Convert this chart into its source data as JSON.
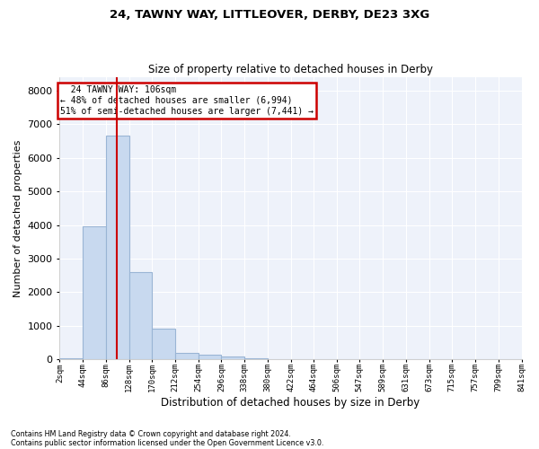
{
  "title1": "24, TAWNY WAY, LITTLEOVER, DERBY, DE23 3XG",
  "title2": "Size of property relative to detached houses in Derby",
  "xlabel": "Distribution of detached houses by size in Derby",
  "ylabel": "Number of detached properties",
  "annotation_title": "24 TAWNY WAY: 106sqm",
  "annotation_line1": "← 48% of detached houses are smaller (6,994)",
  "annotation_line2": "51% of semi-detached houses are larger (7,441) →",
  "footer1": "Contains HM Land Registry data © Crown copyright and database right 2024.",
  "footer2": "Contains public sector information licensed under the Open Government Licence v3.0.",
  "property_size": 106,
  "bin_edges": [
    2,
    44,
    86,
    128,
    170,
    212,
    254,
    296,
    338,
    380,
    422,
    464,
    506,
    547,
    589,
    631,
    673,
    715,
    757,
    799,
    841
  ],
  "bar_heights": [
    20,
    3950,
    6650,
    2600,
    900,
    200,
    130,
    80,
    30,
    5,
    2,
    1,
    0,
    0,
    0,
    0,
    0,
    0,
    0,
    0
  ],
  "bar_color": "#c8d9ef",
  "bar_edge_color": "#9ab5d5",
  "vline_color": "#cc0000",
  "annotation_box_color": "#cc0000",
  "background_color": "#eef2fa",
  "grid_color": "#ffffff",
  "tick_labels": [
    "2sqm",
    "44sqm",
    "86sqm",
    "128sqm",
    "170sqm",
    "212sqm",
    "254sqm",
    "296sqm",
    "338sqm",
    "380sqm",
    "422sqm",
    "464sqm",
    "506sqm",
    "547sqm",
    "589sqm",
    "631sqm",
    "673sqm",
    "715sqm",
    "757sqm",
    "799sqm",
    "841sqm"
  ],
  "ylim": [
    0,
    8400
  ],
  "yticks": [
    0,
    1000,
    2000,
    3000,
    4000,
    5000,
    6000,
    7000,
    8000
  ]
}
